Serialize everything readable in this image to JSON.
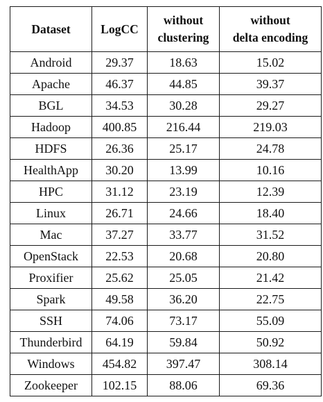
{
  "table": {
    "headers": [
      [
        "Dataset"
      ],
      [
        "LogCC"
      ],
      [
        "without",
        "clustering"
      ],
      [
        "without",
        "delta encoding"
      ]
    ],
    "rows": [
      [
        "Android",
        "29.37",
        "18.63",
        "15.02"
      ],
      [
        "Apache",
        "46.37",
        "44.85",
        "39.37"
      ],
      [
        "BGL",
        "34.53",
        "30.28",
        "29.27"
      ],
      [
        "Hadoop",
        "400.85",
        "216.44",
        "219.03"
      ],
      [
        "HDFS",
        "26.36",
        "25.17",
        "24.78"
      ],
      [
        "HealthApp",
        "30.20",
        "13.99",
        "10.16"
      ],
      [
        "HPC",
        "31.12",
        "23.19",
        "12.39"
      ],
      [
        "Linux",
        "26.71",
        "24.66",
        "18.40"
      ],
      [
        "Mac",
        "37.27",
        "33.77",
        "31.52"
      ],
      [
        "OpenStack",
        "22.53",
        "20.68",
        "20.80"
      ],
      [
        "Proxifier",
        "25.62",
        "25.05",
        "21.42"
      ],
      [
        "Spark",
        "49.58",
        "36.20",
        "22.75"
      ],
      [
        "SSH",
        "74.06",
        "73.17",
        "55.09"
      ],
      [
        "Thunderbird",
        "64.19",
        "59.84",
        "50.92"
      ],
      [
        "Windows",
        "454.82",
        "397.47",
        "308.14"
      ],
      [
        "Zookeeper",
        "102.15",
        "88.06",
        "69.36"
      ]
    ]
  }
}
